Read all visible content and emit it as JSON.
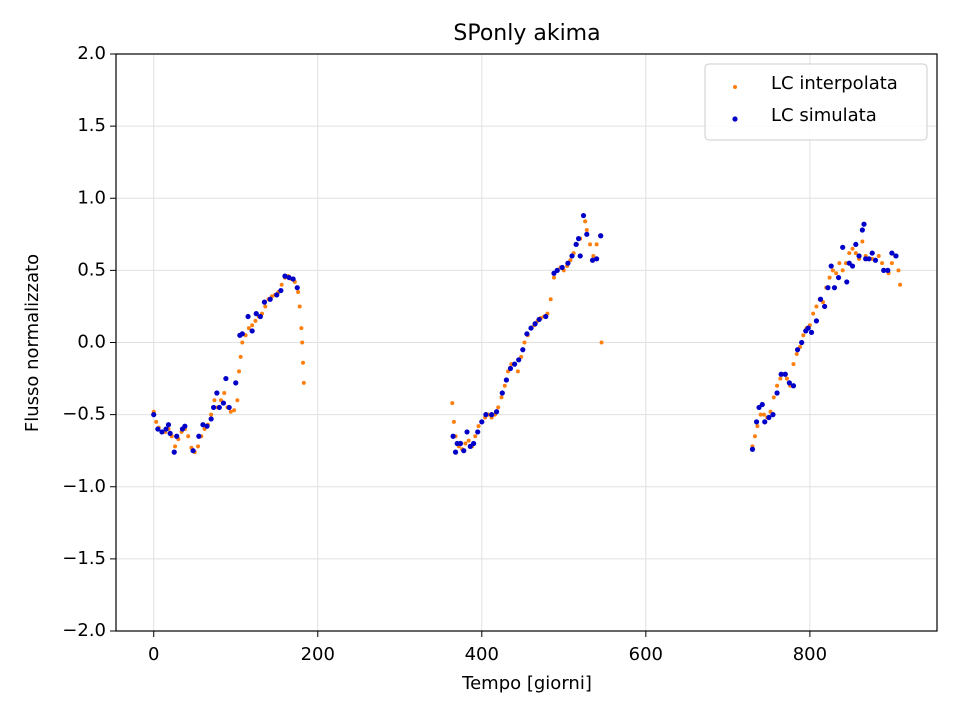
{
  "chart_data": {
    "type": "scatter",
    "title": "SPonly akima",
    "x_label": "Tempo [giorni]",
    "y_label": "Flusso normalizzato",
    "xlim": [
      -46,
      955
    ],
    "ylim": [
      -2.0,
      2.0
    ],
    "xticks": [
      0,
      200,
      400,
      600,
      800
    ],
    "yticks": [
      {
        "value": -2.0,
        "label": "−2.0"
      },
      {
        "value": -1.5,
        "label": "−1.5"
      },
      {
        "value": -1.0,
        "label": "−1.0"
      },
      {
        "value": -0.5,
        "label": "−0.5"
      },
      {
        "value": 0.0,
        "label": "0.0"
      },
      {
        "value": 0.5,
        "label": "0.5"
      },
      {
        "value": 1.0,
        "label": "1.0"
      },
      {
        "value": 1.5,
        "label": "1.5"
      },
      {
        "value": 2.0,
        "label": "2.0"
      }
    ],
    "grid": true,
    "legend": "upper right",
    "series": [
      {
        "name": "LC interpolata",
        "color": "#ff7f0e",
        "x": [
          0,
          3,
          6,
          10,
          14,
          18,
          22,
          26,
          30,
          34,
          38,
          42,
          46,
          50,
          54,
          58,
          62,
          66,
          70,
          74,
          78,
          82,
          86,
          90,
          94,
          98,
          102,
          104,
          106,
          108,
          112,
          116,
          120,
          124,
          128,
          132,
          136,
          140,
          144,
          148,
          152,
          156,
          160,
          164,
          168,
          172,
          176,
          178,
          180,
          181,
          182,
          183,
          364,
          366,
          368,
          372,
          376,
          380,
          384,
          388,
          392,
          396,
          400,
          404,
          408,
          412,
          416,
          420,
          424,
          428,
          432,
          436,
          440,
          444,
          448,
          452,
          456,
          460,
          464,
          468,
          472,
          476,
          480,
          484,
          488,
          492,
          496,
          500,
          504,
          508,
          512,
          516,
          520,
          524,
          526,
          528,
          532,
          536,
          540,
          544,
          546,
          730,
          733,
          736,
          740,
          744,
          748,
          752,
          756,
          760,
          764,
          768,
          772,
          776,
          780,
          784,
          788,
          792,
          796,
          800,
          804,
          808,
          812,
          816,
          820,
          824,
          828,
          832,
          836,
          840,
          844,
          848,
          852,
          856,
          860,
          864,
          868,
          872,
          876,
          880,
          884,
          888,
          892,
          896,
          900,
          904,
          908,
          910
        ],
        "values": [
          -0.48,
          -0.55,
          -0.59,
          -0.62,
          -0.62,
          -0.6,
          -0.65,
          -0.72,
          -0.67,
          -0.62,
          -0.6,
          -0.65,
          -0.73,
          -0.76,
          -0.72,
          -0.65,
          -0.6,
          -0.57,
          -0.5,
          -0.4,
          -0.45,
          -0.4,
          -0.35,
          -0.45,
          -0.48,
          -0.47,
          -0.4,
          -0.2,
          -0.1,
          0.0,
          0.05,
          0.1,
          0.12,
          0.15,
          0.18,
          0.2,
          0.25,
          0.3,
          0.32,
          0.33,
          0.35,
          0.4,
          0.45,
          0.46,
          0.44,
          0.42,
          0.35,
          0.25,
          0.1,
          0.0,
          -0.14,
          -0.28,
          -0.42,
          -0.55,
          -0.65,
          -0.72,
          -0.74,
          -0.7,
          -0.68,
          -0.72,
          -0.65,
          -0.58,
          -0.55,
          -0.52,
          -0.5,
          -0.52,
          -0.5,
          -0.45,
          -0.38,
          -0.3,
          -0.2,
          -0.15,
          -0.15,
          -0.2,
          -0.1,
          0.0,
          0.05,
          0.1,
          0.12,
          0.15,
          0.17,
          0.18,
          0.2,
          0.3,
          0.45,
          0.5,
          0.52,
          0.5,
          0.53,
          0.57,
          0.62,
          0.68,
          0.72,
          0.88,
          0.84,
          0.78,
          0.68,
          0.6,
          0.68,
          0.74,
          0.0,
          -0.72,
          -0.65,
          -0.58,
          -0.5,
          -0.5,
          -0.52,
          -0.48,
          -0.38,
          -0.3,
          -0.25,
          -0.22,
          -0.25,
          -0.3,
          -0.15,
          -0.08,
          -0.03,
          0.05,
          0.1,
          0.12,
          0.2,
          0.25,
          0.3,
          0.28,
          0.38,
          0.45,
          0.5,
          0.48,
          0.55,
          0.5,
          0.55,
          0.62,
          0.65,
          0.62,
          0.58,
          0.7,
          0.6,
          0.58,
          0.58,
          0.57,
          0.6,
          0.55,
          0.5,
          0.48,
          0.55,
          0.6,
          0.5,
          0.4
        ]
      },
      {
        "name": "LC simulata",
        "color": "#0000c8",
        "x": [
          0,
          5,
          10,
          15,
          18,
          20,
          25,
          28,
          35,
          38,
          48,
          55,
          60,
          65,
          70,
          73,
          77,
          80,
          85,
          88,
          92,
          100,
          105,
          108,
          115,
          120,
          125,
          130,
          135,
          142,
          150,
          155,
          160,
          165,
          170,
          175,
          365,
          368,
          370,
          374,
          378,
          382,
          386,
          390,
          395,
          400,
          405,
          412,
          418,
          425,
          430,
          435,
          440,
          445,
          450,
          455,
          460,
          465,
          470,
          478,
          488,
          492,
          498,
          505,
          510,
          515,
          518,
          520,
          524,
          528,
          535,
          540,
          545,
          730,
          735,
          738,
          742,
          745,
          750,
          755,
          760,
          765,
          770,
          775,
          780,
          785,
          790,
          795,
          798,
          802,
          808,
          813,
          818,
          822,
          826,
          830,
          835,
          840,
          845,
          848,
          852,
          856,
          860,
          864,
          866,
          868,
          872,
          876,
          880,
          890,
          895,
          900,
          905
        ],
        "values": [
          -0.5,
          -0.6,
          -0.62,
          -0.6,
          -0.57,
          -0.63,
          -0.76,
          -0.65,
          -0.6,
          -0.58,
          -0.75,
          -0.65,
          -0.57,
          -0.58,
          -0.53,
          -0.45,
          -0.35,
          -0.45,
          -0.42,
          -0.25,
          -0.45,
          -0.28,
          0.05,
          0.06,
          0.18,
          0.08,
          0.2,
          0.18,
          0.28,
          0.3,
          0.33,
          0.36,
          0.46,
          0.45,
          0.44,
          0.38,
          -0.65,
          -0.76,
          -0.7,
          -0.7,
          -0.75,
          -0.62,
          -0.72,
          -0.7,
          -0.62,
          -0.55,
          -0.5,
          -0.5,
          -0.48,
          -0.35,
          -0.26,
          -0.18,
          -0.15,
          -0.12,
          -0.05,
          0.06,
          0.1,
          0.13,
          0.16,
          0.18,
          0.48,
          0.5,
          0.52,
          0.55,
          0.6,
          0.68,
          0.72,
          0.6,
          0.88,
          0.75,
          0.57,
          0.58,
          0.74,
          -0.74,
          -0.55,
          -0.45,
          -0.43,
          -0.55,
          -0.52,
          -0.5,
          -0.35,
          -0.22,
          -0.22,
          -0.28,
          -0.3,
          -0.05,
          0.0,
          0.08,
          0.1,
          0.07,
          0.15,
          0.3,
          0.25,
          0.38,
          0.53,
          0.38,
          0.45,
          0.66,
          0.42,
          0.55,
          0.53,
          0.68,
          0.6,
          0.78,
          0.82,
          0.58,
          0.58,
          0.62,
          0.57,
          0.5,
          0.5,
          0.62,
          0.6
        ]
      }
    ]
  }
}
